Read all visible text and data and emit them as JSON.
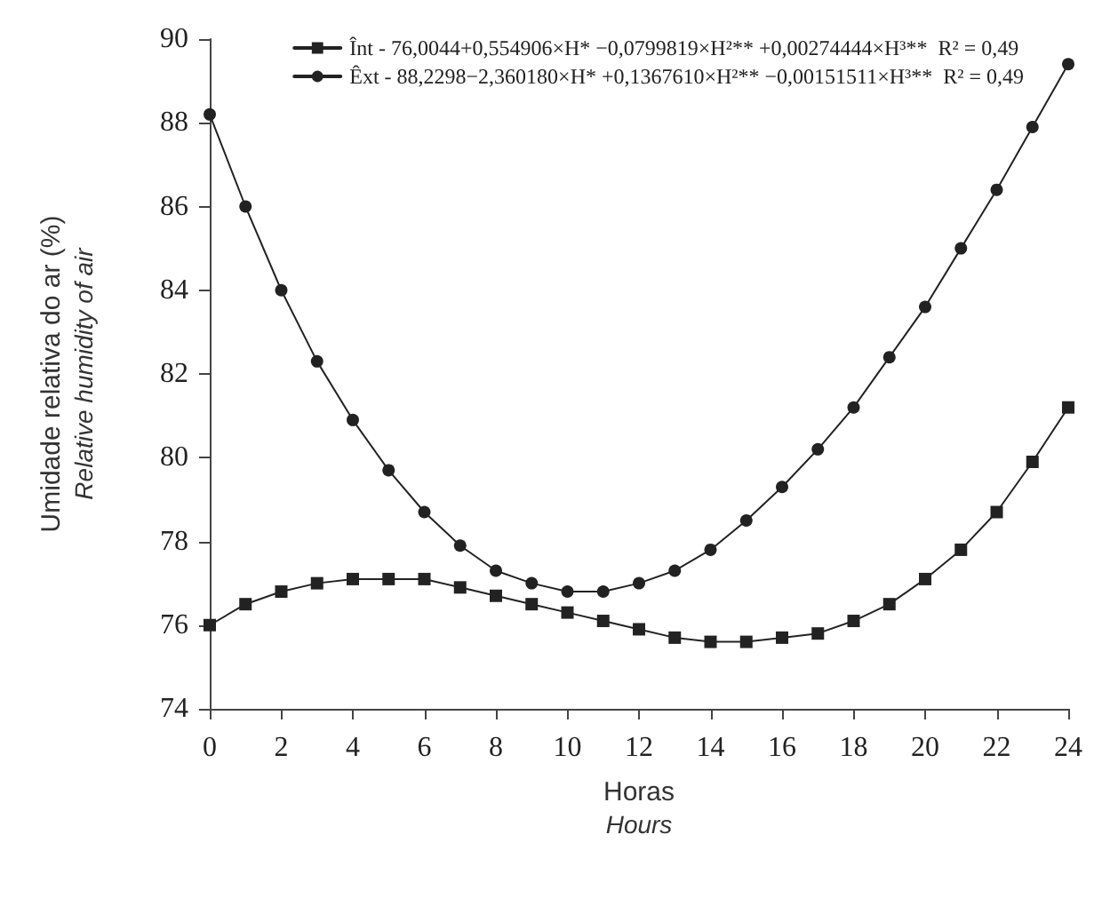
{
  "chart_data": {
    "type": "line",
    "xlabel": "Horas\nHours",
    "ylabel": "Umidade relativa do ar (%)\nRelative humidity of air",
    "x": [
      0,
      1,
      2,
      3,
      4,
      5,
      6,
      7,
      8,
      9,
      10,
      11,
      12,
      13,
      14,
      15,
      16,
      17,
      18,
      19,
      20,
      21,
      22,
      23,
      24
    ],
    "series": [
      {
        "name": "Înt - 76,0044+0,554906×H* −0,0799819×H²** +0,00274444×H³**  R² = 0,49",
        "color": "#222222",
        "marker": "square",
        "values": [
          76.0,
          76.5,
          76.8,
          77.0,
          77.1,
          77.1,
          77.1,
          76.9,
          76.7,
          76.5,
          76.3,
          76.1,
          75.9,
          75.7,
          75.6,
          75.6,
          75.7,
          75.8,
          76.1,
          76.5,
          77.1,
          77.8,
          78.7,
          79.9,
          81.2
        ]
      },
      {
        "name": "Êxt - 88,2298−2,360180×H* +0,1367610×H²** −0,00151511×H³**  R² = 0,49",
        "color": "#222222",
        "marker": "circle",
        "values": [
          88.2,
          86.0,
          84.0,
          82.3,
          80.9,
          79.7,
          78.7,
          77.9,
          77.3,
          77.0,
          76.8,
          76.8,
          77.0,
          77.3,
          77.8,
          78.5,
          79.3,
          80.2,
          81.2,
          82.4,
          83.6,
          85.0,
          86.4,
          87.9,
          89.4
        ]
      }
    ],
    "xlim": [
      0,
      24
    ],
    "xticks": [
      0,
      2,
      4,
      6,
      8,
      10,
      12,
      14,
      16,
      18,
      20,
      22,
      24
    ],
    "ylim": [
      74,
      90
    ],
    "yticks": [
      74,
      76,
      78,
      80,
      82,
      84,
      86,
      88,
      90
    ],
    "grid": false,
    "legend": "top right",
    "line_style": "solid"
  }
}
